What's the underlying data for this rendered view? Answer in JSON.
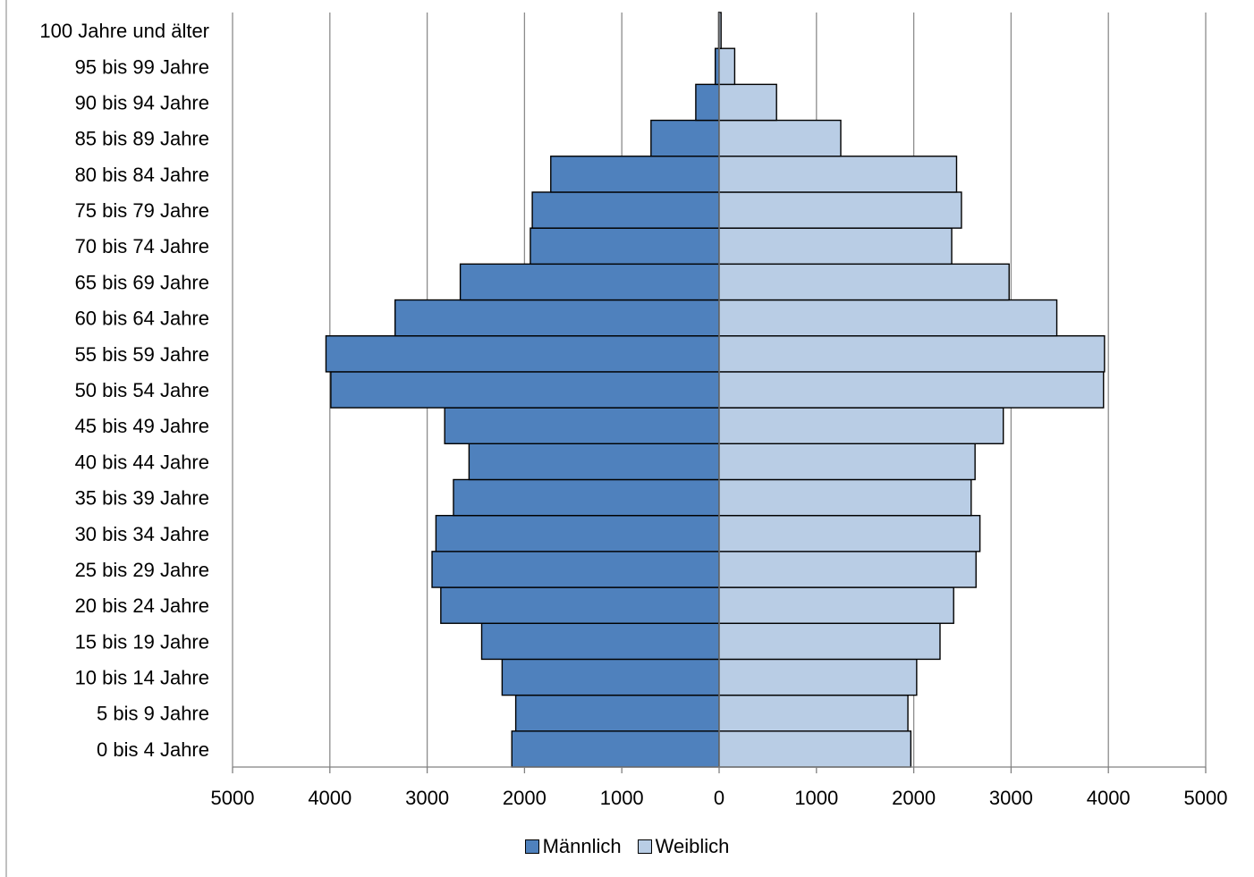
{
  "chart_data": {
    "type": "bar",
    "orientation": "horizontal-population-pyramid",
    "categories": [
      "0 bis 4 Jahre",
      "5 bis 9 Jahre",
      "10 bis 14 Jahre",
      "15 bis 19 Jahre",
      "20 bis 24 Jahre",
      "25 bis 29 Jahre",
      "30 bis 34 Jahre",
      "35 bis 39 Jahre",
      "40 bis 44 Jahre",
      "45 bis 49 Jahre",
      "50 bis 54 Jahre",
      "55 bis 59 Jahre",
      "60 bis 64 Jahre",
      "65 bis 69 Jahre",
      "70 bis 74 Jahre",
      "75 bis 79 Jahre",
      "80 bis 84 Jahre",
      "85 bis 89 Jahre",
      "90 bis 94 Jahre",
      "95 bis 99 Jahre",
      "100 Jahre und älter"
    ],
    "series": [
      {
        "name": "Männlich",
        "color": "#4f81bd",
        "side": "left",
        "values": [
          2130,
          2090,
          2230,
          2440,
          2860,
          2950,
          2910,
          2730,
          2570,
          2820,
          3990,
          4040,
          3330,
          2660,
          1940,
          1920,
          1730,
          700,
          240,
          40,
          5
        ]
      },
      {
        "name": "Weiblich",
        "color": "#b9cde5",
        "side": "right",
        "values": [
          1970,
          1940,
          2030,
          2270,
          2410,
          2640,
          2680,
          2590,
          2630,
          2920,
          3950,
          3960,
          3470,
          2980,
          2390,
          2490,
          2440,
          1250,
          590,
          160,
          20
        ]
      }
    ],
    "xlim": [
      -5000,
      5000
    ],
    "x_ticks": [
      -5000,
      -4000,
      -3000,
      -2000,
      -1000,
      0,
      1000,
      2000,
      3000,
      4000,
      5000
    ],
    "x_tick_labels": [
      "5000",
      "4000",
      "3000",
      "2000",
      "1000",
      "0",
      "1000",
      "2000",
      "3000",
      "4000",
      "5000"
    ],
    "title": "",
    "xlabel": "",
    "ylabel": "",
    "grid": "vertical",
    "legend": "bottom-center"
  }
}
